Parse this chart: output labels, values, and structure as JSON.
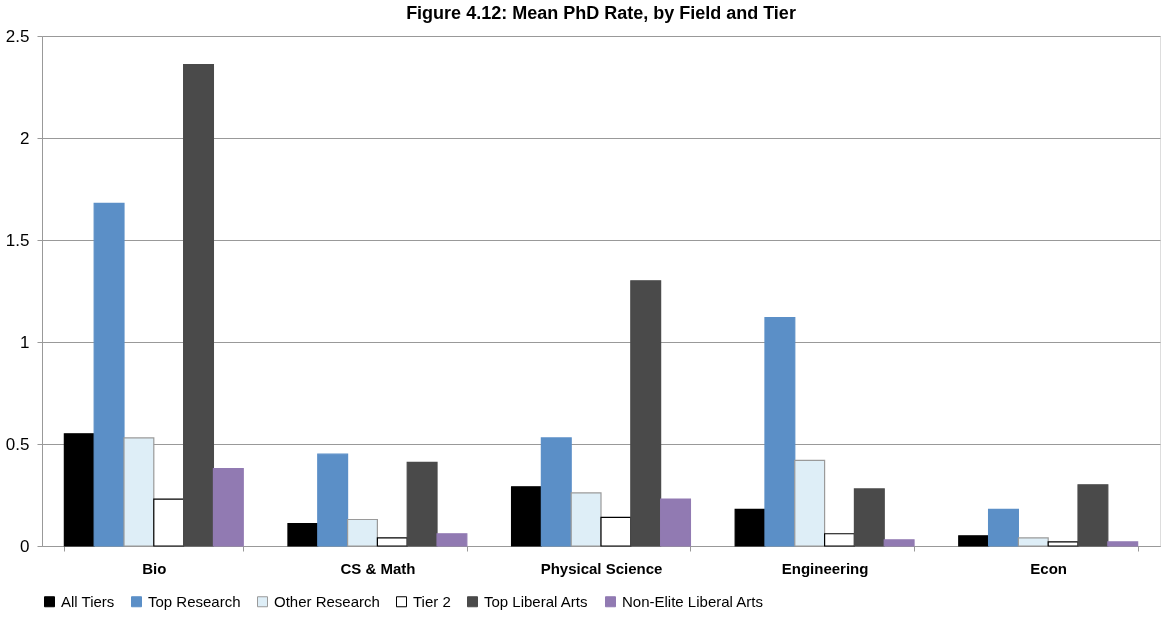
{
  "chart_data": {
    "type": "bar",
    "title": "Figure 4.12: Mean PhD Rate, by Field and Tier",
    "categories": [
      "Bio",
      "CS & Math",
      "Physical Science",
      "Engineering",
      "Econ"
    ],
    "series": [
      {
        "name": "All Tiers",
        "color": "#000000",
        "values": [
          0.55,
          0.11,
          0.29,
          0.18,
          0.05
        ]
      },
      {
        "name": "Top Research",
        "color": "#5b8fc7",
        "values": [
          1.68,
          0.45,
          0.53,
          1.12,
          0.18
        ]
      },
      {
        "name": "Other Research",
        "color": "#deeef7",
        "values": [
          0.53,
          0.13,
          0.26,
          0.42,
          0.04
        ]
      },
      {
        "name": "Tier 2",
        "color": "#ffffff",
        "values": [
          0.23,
          0.04,
          0.14,
          0.06,
          0.02
        ]
      },
      {
        "name": "Top Liberal Arts",
        "color": "#4a4a4a",
        "values": [
          2.36,
          0.41,
          1.3,
          0.28,
          0.3
        ]
      },
      {
        "name": "Non-Elite Liberal Arts",
        "color": "#917ab2",
        "values": [
          0.38,
          0.06,
          0.23,
          0.03,
          0.02
        ]
      }
    ],
    "ylim": [
      0,
      2.5
    ],
    "yticks": [
      0,
      0.5,
      1,
      1.5,
      2,
      2.5
    ],
    "grid": "y",
    "legend": "bottom"
  }
}
